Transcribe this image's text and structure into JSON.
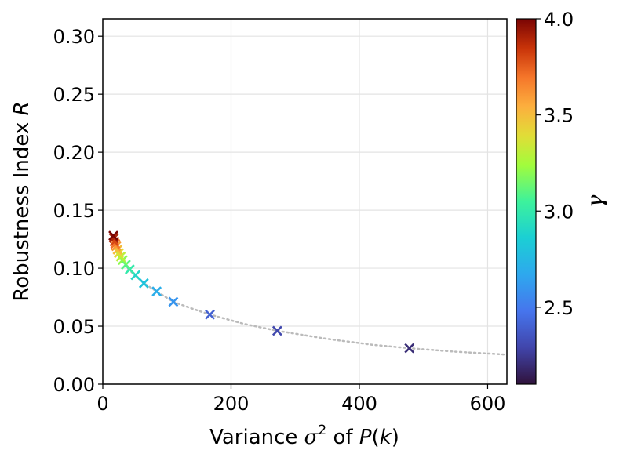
{
  "chart_data": {
    "type": "scatter",
    "title": "",
    "xlabel": {
      "prefix": "Variance ",
      "sym": "σ",
      "sup": "2",
      "mid": " of ",
      "func": "P",
      "open": "(",
      "var": "k",
      "close": ")"
    },
    "ylabel": {
      "prefix": "Robustness Index ",
      "sym": "R"
    },
    "xlim": [
      0,
      630
    ],
    "ylim": [
      0,
      0.315
    ],
    "xticks": [
      0,
      200,
      400,
      600
    ],
    "xtick_labels": [
      "0",
      "200",
      "400",
      "600"
    ],
    "yticks": [
      0.0,
      0.05,
      0.1,
      0.15,
      0.2,
      0.25,
      0.3
    ],
    "ytick_labels": [
      "0.00",
      "0.05",
      "0.10",
      "0.15",
      "0.20",
      "0.25",
      "0.30"
    ],
    "grid": true,
    "marker": "x",
    "colormap": "turbo",
    "colorbar": {
      "label": "γ",
      "range": [
        2.1,
        4.0
      ],
      "ticks": [
        2.5,
        3.0,
        3.5,
        4.0
      ],
      "tick_labels": [
        "2.5",
        "3.0",
        "3.5",
        "4.0"
      ]
    },
    "points": [
      {
        "x": 478,
        "y": 0.031,
        "gamma": 2.2
      },
      {
        "x": 272,
        "y": 0.046,
        "gamma": 2.3
      },
      {
        "x": 167,
        "y": 0.06,
        "gamma": 2.4
      },
      {
        "x": 110,
        "y": 0.071,
        "gamma": 2.6
      },
      {
        "x": 84,
        "y": 0.08,
        "gamma": 2.7
      },
      {
        "x": 64,
        "y": 0.087,
        "gamma": 2.8
      },
      {
        "x": 51,
        "y": 0.094,
        "gamma": 2.9
      },
      {
        "x": 42,
        "y": 0.099,
        "gamma": 3.0
      },
      {
        "x": 36,
        "y": 0.103,
        "gamma": 3.1
      },
      {
        "x": 31,
        "y": 0.107,
        "gamma": 3.2
      },
      {
        "x": 28,
        "y": 0.11,
        "gamma": 3.3
      },
      {
        "x": 25,
        "y": 0.113,
        "gamma": 3.4
      },
      {
        "x": 23,
        "y": 0.116,
        "gamma": 3.5
      },
      {
        "x": 21,
        "y": 0.119,
        "gamma": 3.6
      },
      {
        "x": 19.5,
        "y": 0.121,
        "gamma": 3.7
      },
      {
        "x": 18.3,
        "y": 0.123,
        "gamma": 3.8
      },
      {
        "x": 17.3,
        "y": 0.126,
        "gamma": 3.9
      },
      {
        "x": 16.5,
        "y": 0.128,
        "gamma": 4.0
      }
    ],
    "trend_line": {
      "style": "dotted",
      "color": "#bbbbbb",
      "x": [
        16,
        20,
        25,
        30,
        40,
        50,
        64,
        84,
        110,
        140,
        167,
        220,
        272,
        350,
        420,
        478,
        550,
        630
      ],
      "y": [
        0.129,
        0.121,
        0.113,
        0.107,
        0.099,
        0.094,
        0.087,
        0.08,
        0.071,
        0.065,
        0.06,
        0.052,
        0.046,
        0.039,
        0.034,
        0.031,
        0.028,
        0.0255
      ]
    }
  }
}
